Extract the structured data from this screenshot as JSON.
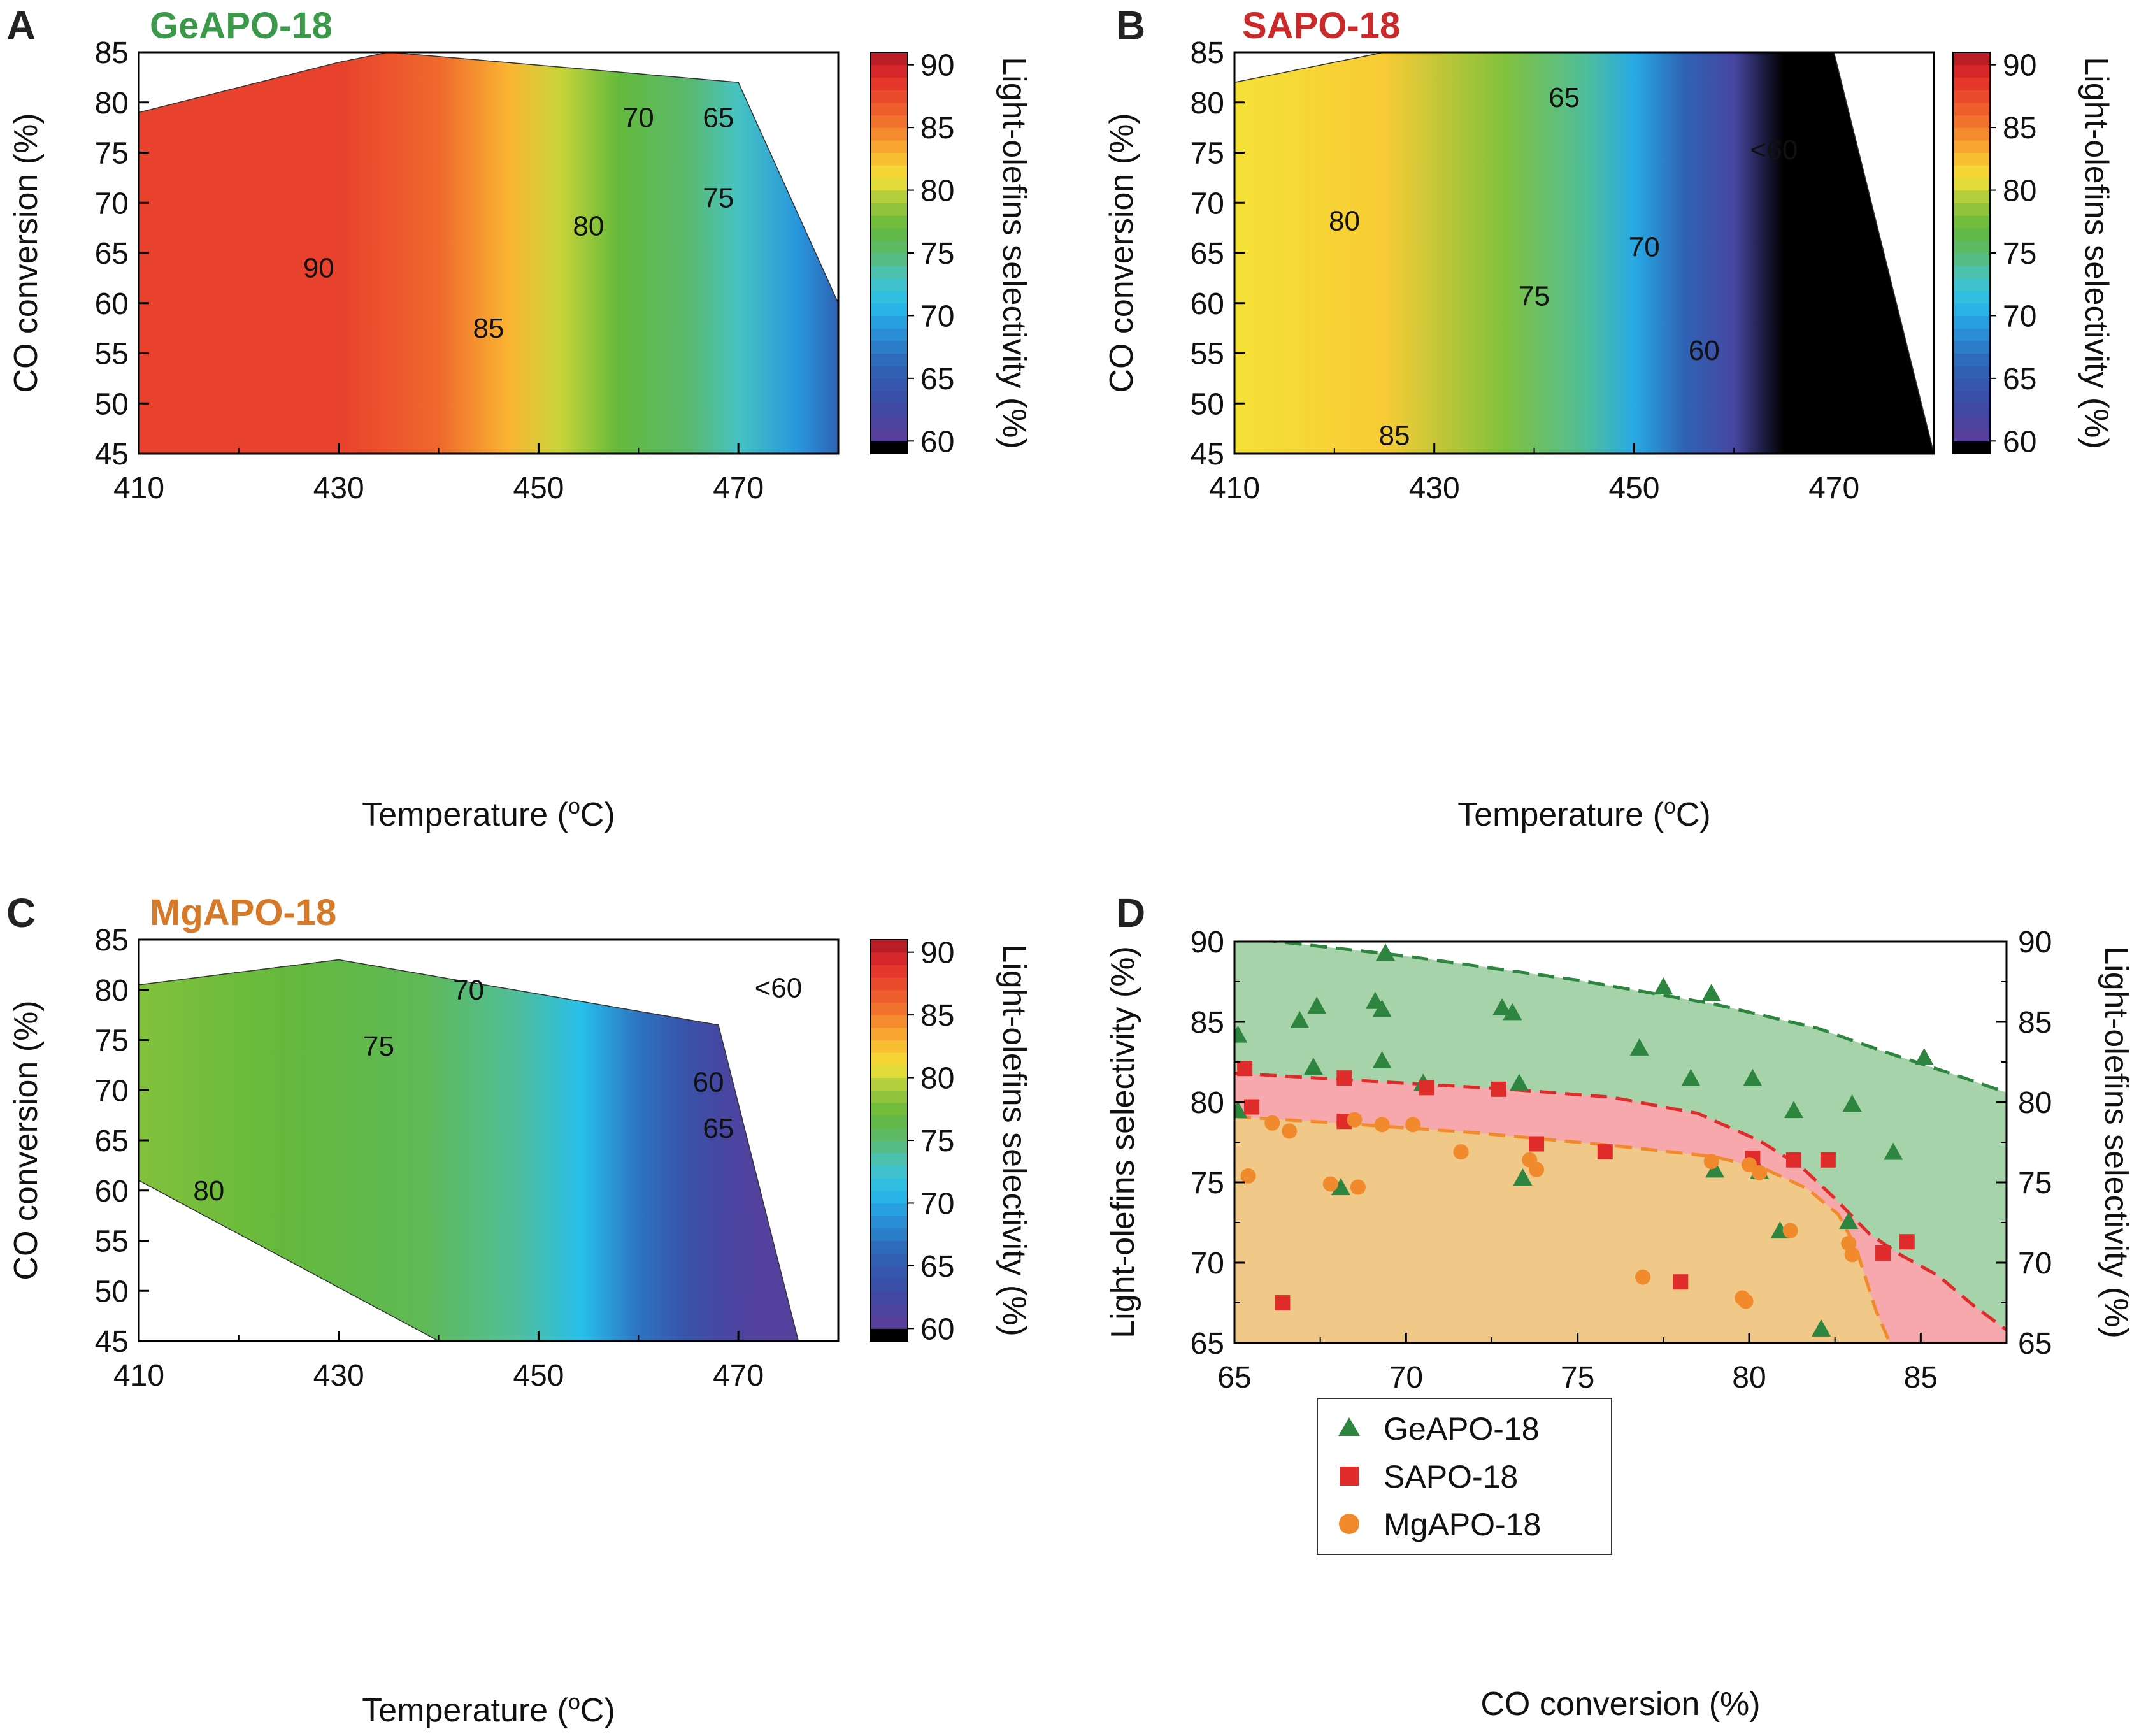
{
  "colors": {
    "ge": "#2e8540",
    "sa": "#e02b2b",
    "mg": "#f08a2c",
    "ge_title": "#3a9a4a",
    "sa_title": "#cc2a2a",
    "mg_title": "#d67a2a",
    "ge_fill": "#a7d3ab",
    "sa_fill": "#f6a8ad",
    "mg_fill": "#f0c887"
  },
  "colorbar": {
    "label": "Light-olefins selectivity (%)",
    "ticks": [
      "90",
      "85",
      "80",
      "75",
      "70",
      "65",
      "60"
    ],
    "min": 59,
    "max": 91,
    "below_color": "#000000"
  },
  "chart_data": [
    {
      "type": "heatmap",
      "panel": "A",
      "title": "GeAPO-18",
      "xlabel": "Temperature (oC)",
      "ylabel": "CO conversion (%)",
      "xlim": [
        410,
        480
      ],
      "ylim": [
        45,
        85
      ],
      "xticks": [
        "410",
        "430",
        "450",
        "470"
      ],
      "yticks": [
        "45",
        "50",
        "55",
        "60",
        "65",
        "70",
        "75",
        "80",
        "85"
      ],
      "region": [
        [
          410,
          79
        ],
        [
          430,
          84
        ],
        [
          435,
          85
        ],
        [
          470,
          82
        ],
        [
          480,
          60
        ],
        [
          480,
          45
        ],
        [
          410,
          45
        ]
      ],
      "bands": [
        {
          "x": 410,
          "value": 88
        },
        {
          "x": 430,
          "value": 88
        },
        {
          "x": 440,
          "value": 86
        },
        {
          "x": 447,
          "value": 83
        },
        {
          "x": 452,
          "value": 80
        },
        {
          "x": 458,
          "value": 77
        },
        {
          "x": 465,
          "value": 75
        },
        {
          "x": 470,
          "value": 73
        },
        {
          "x": 476,
          "value": 69
        },
        {
          "x": 480,
          "value": 66
        }
      ],
      "contours": [
        {
          "label": "90",
          "x": 428,
          "y": 63.5,
          "color": "#ffffff"
        },
        {
          "label": "85",
          "x": 445,
          "y": 57.5,
          "color": "#111111"
        },
        {
          "label": "80",
          "x": 455,
          "y": 67.7,
          "color": "#111111"
        },
        {
          "label": "75",
          "x": 468,
          "y": 70.5,
          "color": "#111111"
        },
        {
          "label": "70",
          "x": 460,
          "y": 78.5,
          "color": "#111111"
        },
        {
          "label": "65",
          "x": 468,
          "y": 78.5,
          "color": "#111111"
        }
      ]
    },
    {
      "type": "heatmap",
      "panel": "B",
      "title": "SAPO-18",
      "xlabel": "Temperature (oC)",
      "ylabel": "CO conversion (%)",
      "xlim": [
        410,
        480
      ],
      "ylim": [
        45,
        85
      ],
      "xticks": [
        "410",
        "430",
        "450",
        "470"
      ],
      "yticks": [
        "45",
        "50",
        "55",
        "60",
        "65",
        "70",
        "75",
        "80",
        "85"
      ],
      "region": [
        [
          410,
          82
        ],
        [
          425,
          85
        ],
        [
          470,
          85
        ],
        [
          480,
          45
        ],
        [
          410,
          45
        ]
      ],
      "bands": [
        {
          "x": 410,
          "value": 81
        },
        {
          "x": 425,
          "value": 82
        },
        {
          "x": 437,
          "value": 78
        },
        {
          "x": 445,
          "value": 74
        },
        {
          "x": 450,
          "value": 70
        },
        {
          "x": 455,
          "value": 66
        },
        {
          "x": 460,
          "value": 62
        },
        {
          "x": 465,
          "value": 58
        },
        {
          "x": 480,
          "value": 58
        }
      ],
      "contours": [
        {
          "label": "65",
          "x": 443,
          "y": 80.5,
          "color": "#111111"
        },
        {
          "label": "<60",
          "x": 464,
          "y": 75.3,
          "color": "#ffffff"
        },
        {
          "label": "80",
          "x": 421,
          "y": 68.2,
          "color": "#111111"
        },
        {
          "label": "70",
          "x": 451,
          "y": 65.6,
          "color": "#111111"
        },
        {
          "label": "75",
          "x": 440,
          "y": 60.7,
          "color": "#111111"
        },
        {
          "label": "60",
          "x": 457,
          "y": 55.3,
          "color": "#111111"
        },
        {
          "label": "85",
          "x": 426,
          "y": 46.8,
          "color": "#111111"
        }
      ]
    },
    {
      "type": "heatmap",
      "panel": "C",
      "title": "MgAPO-18",
      "xlabel": "Temperature (oC)",
      "ylabel": "CO conversion (%)",
      "xlim": [
        410,
        480
      ],
      "ylim": [
        45,
        85
      ],
      "xticks": [
        "410",
        "430",
        "450",
        "470"
      ],
      "yticks": [
        "45",
        "50",
        "55",
        "60",
        "65",
        "70",
        "75",
        "80",
        "85"
      ],
      "region": [
        [
          410,
          80.5
        ],
        [
          430,
          83
        ],
        [
          468,
          76.5
        ],
        [
          476,
          45
        ],
        [
          440,
          45
        ],
        [
          410,
          61
        ]
      ],
      "bands": [
        {
          "x": 410,
          "value": 78
        },
        {
          "x": 425,
          "value": 77
        },
        {
          "x": 440,
          "value": 76
        },
        {
          "x": 450,
          "value": 74
        },
        {
          "x": 457,
          "value": 71
        },
        {
          "x": 463,
          "value": 67
        },
        {
          "x": 468,
          "value": 64
        },
        {
          "x": 472,
          "value": 62
        },
        {
          "x": 476,
          "value": 61
        }
      ],
      "contours": [
        {
          "label": "70",
          "x": 443,
          "y": 80.0,
          "color": "#111111"
        },
        {
          "label": "<60",
          "x": 474,
          "y": 80.2,
          "color": "#111111"
        },
        {
          "label": "75",
          "x": 434,
          "y": 74.4,
          "color": "#111111"
        },
        {
          "label": "60",
          "x": 467,
          "y": 70.8,
          "color": "#111111"
        },
        {
          "label": "65",
          "x": 468,
          "y": 66.2,
          "color": "#111111"
        },
        {
          "label": "80",
          "x": 417,
          "y": 60.0,
          "color": "#111111"
        }
      ]
    },
    {
      "type": "scatter",
      "panel": "D",
      "xlabel": "CO conversion (%)",
      "ylabel": "Light-olefins selectivity (%)",
      "ylabel_right": "Light-olefins selectivity (%)",
      "xlim": [
        65,
        87.5
      ],
      "ylim": [
        65,
        90
      ],
      "xticks": [
        "65",
        "70",
        "75",
        "80",
        "85"
      ],
      "yticks": [
        "65",
        "70",
        "75",
        "80",
        "85",
        "90"
      ],
      "legend_position": "bottom-left",
      "series": [
        {
          "name": "GeAPO-18",
          "marker": "triangle",
          "points": [
            [
              65.1,
              84.1
            ],
            [
              66.9,
              85.0
            ],
            [
              67.4,
              85.9
            ],
            [
              67.3,
              82.1
            ],
            [
              69.1,
              86.2
            ],
            [
              69.4,
              89.2
            ],
            [
              69.3,
              85.7
            ],
            [
              69.3,
              82.5
            ],
            [
              70.5,
              81.1
            ],
            [
              72.8,
              85.8
            ],
            [
              73.1,
              85.5
            ],
            [
              73.3,
              81.1
            ],
            [
              68.1,
              74.6
            ],
            [
              73.4,
              75.2
            ],
            [
              77.5,
              87.1
            ],
            [
              78.9,
              86.7
            ],
            [
              76.8,
              83.3
            ],
            [
              78.3,
              81.4
            ],
            [
              80.1,
              81.4
            ],
            [
              81.3,
              79.4
            ],
            [
              83.0,
              79.8
            ],
            [
              84.2,
              76.8
            ],
            [
              85.1,
              82.7
            ],
            [
              79.0,
              75.7
            ],
            [
              80.3,
              75.6
            ],
            [
              80.9,
              71.9
            ],
            [
              82.9,
              72.5
            ],
            [
              82.1,
              65.8
            ],
            [
              65.1,
              79.4
            ]
          ]
        },
        {
          "name": "SAPO-18",
          "marker": "square",
          "points": [
            [
              65.3,
              82.1
            ],
            [
              65.5,
              79.7
            ],
            [
              68.2,
              81.5
            ],
            [
              68.2,
              78.8
            ],
            [
              70.6,
              80.9
            ],
            [
              72.7,
              80.8
            ],
            [
              73.8,
              77.4
            ],
            [
              75.8,
              76.9
            ],
            [
              80.1,
              76.5
            ],
            [
              81.3,
              76.4
            ],
            [
              82.3,
              76.4
            ],
            [
              84.6,
              71.3
            ],
            [
              83.9,
              70.6
            ],
            [
              78.0,
              68.8
            ],
            [
              66.4,
              67.5
            ]
          ]
        },
        {
          "name": "MgAPO-18",
          "marker": "circle",
          "points": [
            [
              66.1,
              78.7
            ],
            [
              66.6,
              78.2
            ],
            [
              67.8,
              74.9
            ],
            [
              68.5,
              78.9
            ],
            [
              68.6,
              74.7
            ],
            [
              69.3,
              78.6
            ],
            [
              70.2,
              78.6
            ],
            [
              71.6,
              76.9
            ],
            [
              73.6,
              76.4
            ],
            [
              73.8,
              75.8
            ],
            [
              78.9,
              76.3
            ],
            [
              80.0,
              76.1
            ],
            [
              80.3,
              75.6
            ],
            [
              81.2,
              72.0
            ],
            [
              82.9,
              71.2
            ],
            [
              83.0,
              70.5
            ],
            [
              76.9,
              69.1
            ],
            [
              65.4,
              75.4
            ],
            [
              79.8,
              67.8
            ],
            [
              79.9,
              67.6
            ]
          ]
        }
      ],
      "envelopes": [
        {
          "name": "GeAPO-18",
          "points": [
            [
              65,
              90.3
            ],
            [
              70,
              89.1
            ],
            [
              75,
              87.6
            ],
            [
              79,
              86.1
            ],
            [
              82,
              84.6
            ],
            [
              84,
              83.1
            ],
            [
              86,
              81.7
            ],
            [
              87.5,
              80.6
            ]
          ]
        },
        {
          "name": "SAPO-18",
          "points": [
            [
              65,
              81.8
            ],
            [
              69,
              81.3
            ],
            [
              73,
              80.8
            ],
            [
              76,
              80.3
            ],
            [
              78.5,
              79.3
            ],
            [
              80.3,
              77.6
            ],
            [
              81.5,
              76.0
            ],
            [
              82.5,
              74.0
            ],
            [
              83.5,
              71.8
            ],
            [
              84.4,
              70.5
            ],
            [
              85.5,
              69.2
            ],
            [
              86.5,
              67.4
            ],
            [
              87.5,
              65.8
            ]
          ]
        },
        {
          "name": "MgAPO-18",
          "points": [
            [
              65,
              79.1
            ],
            [
              68,
              78.7
            ],
            [
              72,
              78.1
            ],
            [
              76,
              77.3
            ],
            [
              79,
              76.6
            ],
            [
              80.5,
              75.8
            ],
            [
              81.7,
              74.6
            ],
            [
              82.6,
              73.0
            ],
            [
              83.1,
              71.0
            ],
            [
              83.4,
              69.0
            ],
            [
              83.7,
              67.0
            ],
            [
              84.1,
              65.0
            ]
          ]
        }
      ]
    }
  ]
}
